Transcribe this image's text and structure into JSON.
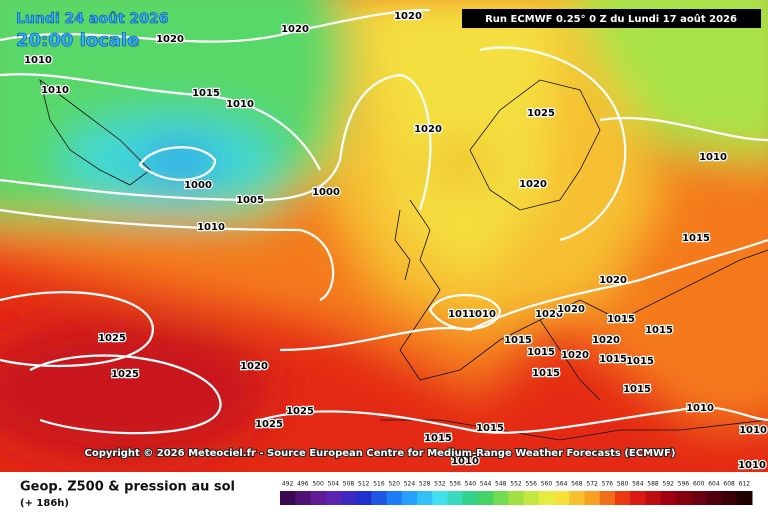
{
  "header": {
    "date": "Lundi 24 août 2026",
    "time": "20:00 locale",
    "run": "Run ECMWF 0.25° 0 Z du Lundi 17 août 2026"
  },
  "copyright": "Copyright © 2026 Meteociel.fr - Source European Centre for Medium-Range Weather Forecasts (ECMWF)",
  "footer": {
    "title": "Geop. Z500 & pression au sol",
    "lead": "(+ 186h)"
  },
  "colorbar": {
    "ticks": [
      492,
      496,
      500,
      504,
      508,
      512,
      516,
      520,
      524,
      528,
      532,
      536,
      540,
      544,
      548,
      552,
      556,
      560,
      564,
      568,
      572,
      576,
      580,
      584,
      588,
      592,
      596,
      600,
      604,
      608,
      612
    ]
  },
  "isobar_labels": [
    "1020",
    "1020",
    "1020",
    "1010",
    "1010",
    "1015",
    "1010",
    "1000",
    "1005",
    "1000",
    "1010",
    "1020",
    "1025",
    "1020",
    "1010",
    "1015",
    "1020",
    "1010",
    "1010",
    "1020",
    "1020",
    "1015",
    "1015",
    "1015",
    "1015",
    "1020",
    "1020",
    "1015",
    "1015",
    "1015",
    "1025",
    "1025",
    "1020",
    "1025",
    "1025",
    "1015",
    "1015",
    "1015",
    "1010",
    "1010",
    "1010",
    "1010"
  ]
}
